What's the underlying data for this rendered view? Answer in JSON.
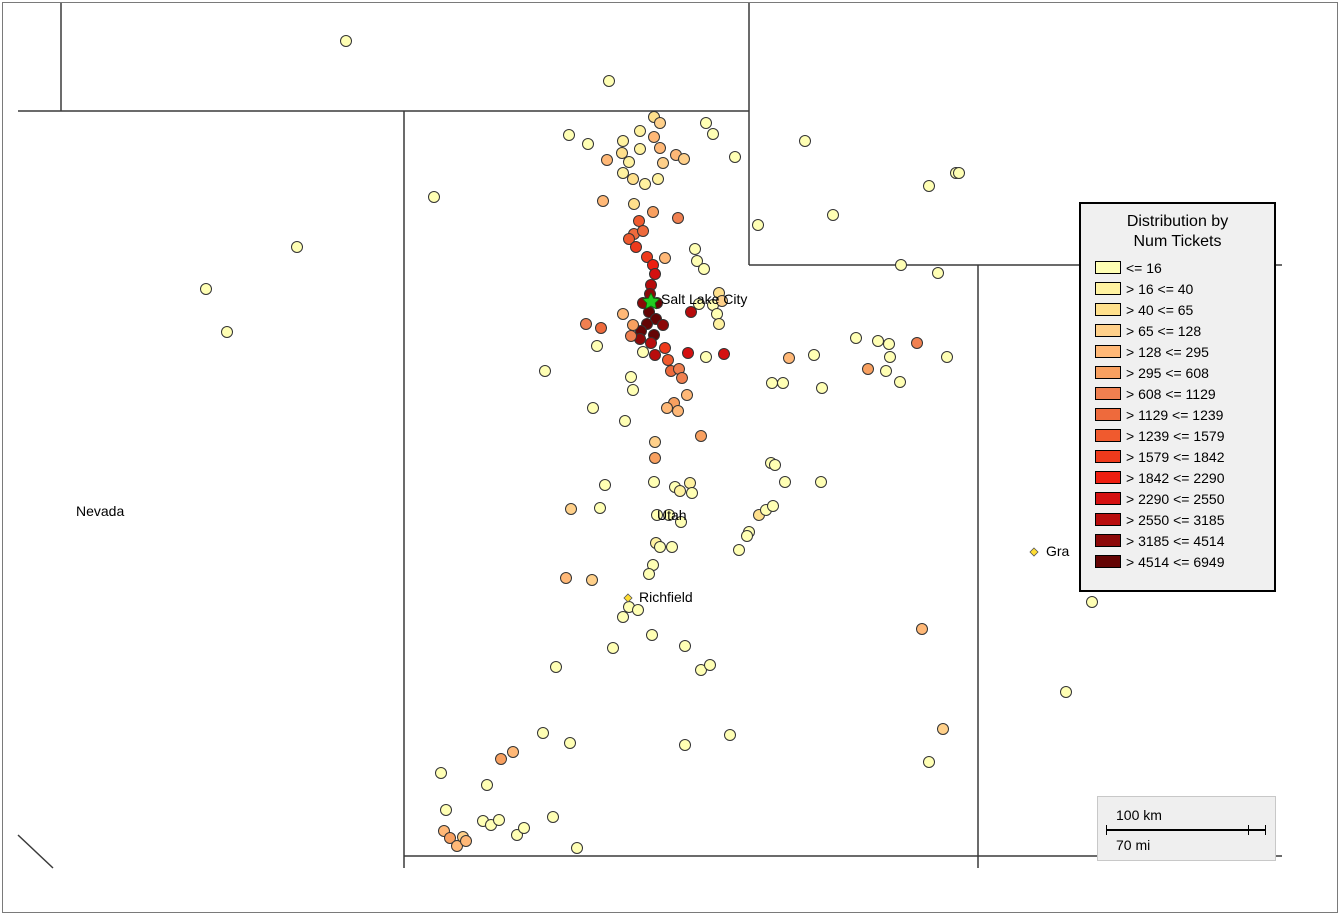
{
  "map": {
    "state_labels": {
      "nevada": "Nevada",
      "utah": "Utah"
    },
    "cities": [
      {
        "name": "Salt Lake City",
        "marker": "green-star"
      },
      {
        "name": "Richfield",
        "marker": "yellow-diamond"
      },
      {
        "name": "Gra",
        "marker": "yellow-diamond"
      }
    ],
    "colors": {
      "border": "#3a3a3a",
      "background": "#ffffff",
      "star": "#22cc22",
      "city_diamond": "#ffdd33"
    }
  },
  "legend": {
    "title_line1": "Distribution by",
    "title_line2": "Num Tickets",
    "classes": [
      {
        "label": "<= 16",
        "color": "#ffffb4"
      },
      {
        "label": "> 16 <= 40",
        "color": "#fff2a0"
      },
      {
        "label": "> 40 <= 65",
        "color": "#ffe08c"
      },
      {
        "label": "> 65 <= 128",
        "color": "#ffd08a"
      },
      {
        "label": "> 128 <= 295",
        "color": "#ffb877"
      },
      {
        "label": "> 295 <= 608",
        "color": "#f8a060"
      },
      {
        "label": "> 608 <= 1129",
        "color": "#f08050"
      },
      {
        "label": "> 1129 <= 1239",
        "color": "#ee6a3c"
      },
      {
        "label": "> 1239 <= 1579",
        "color": "#f05a2e"
      },
      {
        "label": "> 1579 <= 1842",
        "color": "#ee3a1c"
      },
      {
        "label": "> 1842 <= 2290",
        "color": "#ee1e10"
      },
      {
        "label": "> 2290 <= 2550",
        "color": "#d41010"
      },
      {
        "label": "> 2550 <= 3185",
        "color": "#b80c0c"
      },
      {
        "label": "> 3185 <= 4514",
        "color": "#8c0808"
      },
      {
        "label": "> 4514 <= 6949",
        "color": "#640404"
      }
    ]
  },
  "scale": {
    "km_label": "100 km",
    "mi_label": "70 mi"
  }
}
